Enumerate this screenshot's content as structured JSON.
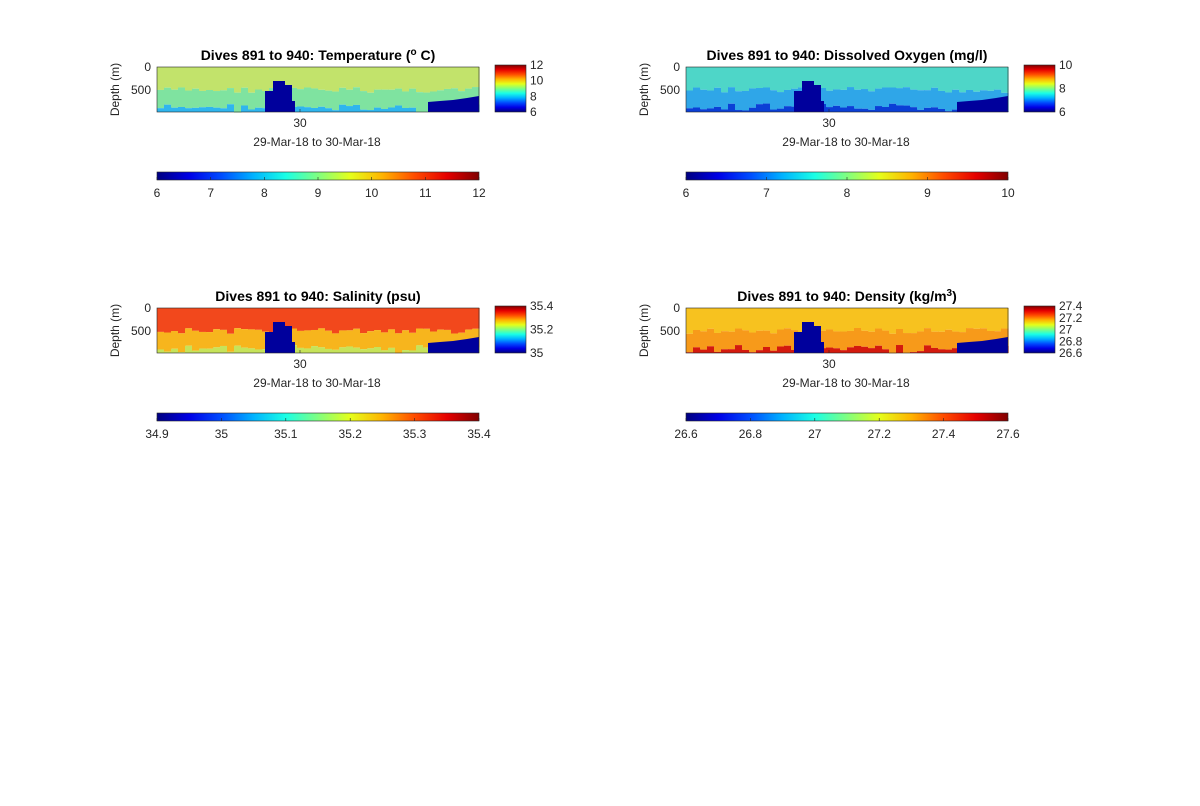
{
  "figure": {
    "subplots": [
      {
        "id": "temperature",
        "title_main": "Dives 891 to 940: Temperature (",
        "title_sup": "o",
        "title_end": " C)",
        "ylabel": "Depth (m)",
        "y_ticks": [
          "0",
          "500"
        ],
        "x_tick": "30",
        "xlabel": "29-Mar-18 to 30-Mar-18",
        "side_colorbar_ticks": [
          "12",
          "10",
          "8",
          "6"
        ],
        "bottom_colorbar_ticks": [
          "6",
          "7",
          "8",
          "9",
          "10",
          "11",
          "12"
        ],
        "upper_color": "#c2e36b",
        "mid_color": "#7fe3a0",
        "deep_color": "#2fb5ee",
        "hole_color": "#00009c"
      },
      {
        "id": "oxygen",
        "title_main": "Dives 891 to 940: Dissolved Oxygen (mg/l)",
        "title_sup": "",
        "title_end": "",
        "ylabel": "Depth (m)",
        "y_ticks": [
          "0",
          "500"
        ],
        "x_tick": "30",
        "xlabel": "29-Mar-18 to 30-Mar-18",
        "side_colorbar_ticks": [
          "10",
          "8",
          "6"
        ],
        "bottom_colorbar_ticks": [
          "6",
          "7",
          "8",
          "9",
          "10"
        ],
        "upper_color": "#4ed6c8",
        "mid_color": "#2fa6e8",
        "deep_color": "#0b3fd6",
        "hole_color": "#00009c"
      },
      {
        "id": "salinity",
        "title_main": "Dives 891 to 940: Salinity (psu)",
        "title_sup": "",
        "title_end": "",
        "ylabel": "Depth (m)",
        "y_ticks": [
          "0",
          "500"
        ],
        "x_tick": "30",
        "xlabel": "29-Mar-18 to 30-Mar-18",
        "side_colorbar_ticks": [
          "35.4",
          "35.2",
          "35"
        ],
        "bottom_colorbar_ticks": [
          "34.9",
          "35",
          "35.1",
          "35.2",
          "35.3",
          "35.4"
        ],
        "upper_color": "#f2481c",
        "mid_color": "#f7b51d",
        "deep_color": "#c6e35a",
        "hole_color": "#00009c"
      },
      {
        "id": "density",
        "title_main": "Dives 891 to 940: Density (kg/m",
        "title_sup": "3",
        "title_end": ")",
        "ylabel": "Depth (m)",
        "y_ticks": [
          "0",
          "500"
        ],
        "x_tick": "30",
        "xlabel": "29-Mar-18 to 30-Mar-18",
        "side_colorbar_ticks": [
          "27.4",
          "27.2",
          "27",
          "26.8",
          "26.6"
        ],
        "bottom_colorbar_ticks": [
          "26.6",
          "26.8",
          "27",
          "27.2",
          "27.4",
          "27.6"
        ],
        "upper_color": "#f7c21f",
        "mid_color": "#f79a1a",
        "deep_color": "#d41a0e",
        "hole_color": "#00009c"
      }
    ]
  },
  "chart_data": [
    {
      "type": "heatmap",
      "title": "Dives 891 to 940: Temperature (o C)",
      "ylabel": "Depth (m)",
      "xlabel": "29-Mar-18 to 30-Mar-18",
      "x_tick_labels": [
        "30"
      ],
      "y_tick_labels": [
        "0",
        "500"
      ],
      "colorbar_range": [
        6,
        12
      ],
      "colormap": "jet",
      "description_values": {
        "surface": 9.7,
        "mid": 8.8,
        "deep": 8.0
      }
    },
    {
      "type": "heatmap",
      "title": "Dives 891 to 940: Dissolved Oxygen (mg/l)",
      "ylabel": "Depth (m)",
      "xlabel": "29-Mar-18 to 30-Mar-18",
      "x_tick_labels": [
        "30"
      ],
      "y_tick_labels": [
        "0",
        "500"
      ],
      "colorbar_range": [
        6,
        10
      ],
      "colormap": "jet",
      "description_values": {
        "surface": 7.8,
        "mid": 7.2,
        "deep": 6.5
      }
    },
    {
      "type": "heatmap",
      "title": "Dives 891 to 940: Salinity (psu)",
      "ylabel": "Depth (m)",
      "xlabel": "29-Mar-18 to 30-Mar-18",
      "x_tick_labels": [
        "30"
      ],
      "y_tick_labels": [
        "0",
        "500"
      ],
      "colorbar_range": [
        34.9,
        35.4
      ],
      "colormap": "jet",
      "description_values": {
        "surface": 35.33,
        "mid": 35.27,
        "deep": 35.2
      }
    },
    {
      "type": "heatmap",
      "title": "Dives 891 to 940: Density (kg/m3)",
      "ylabel": "Depth (m)",
      "xlabel": "29-Mar-18 to 30-Mar-18",
      "x_tick_labels": [
        "30"
      ],
      "y_tick_labels": [
        "0",
        "500"
      ],
      "colorbar_range": [
        26.6,
        27.6
      ],
      "colormap": "jet",
      "description_values": {
        "surface": 27.25,
        "mid": 27.32,
        "deep": 27.5
      }
    }
  ]
}
